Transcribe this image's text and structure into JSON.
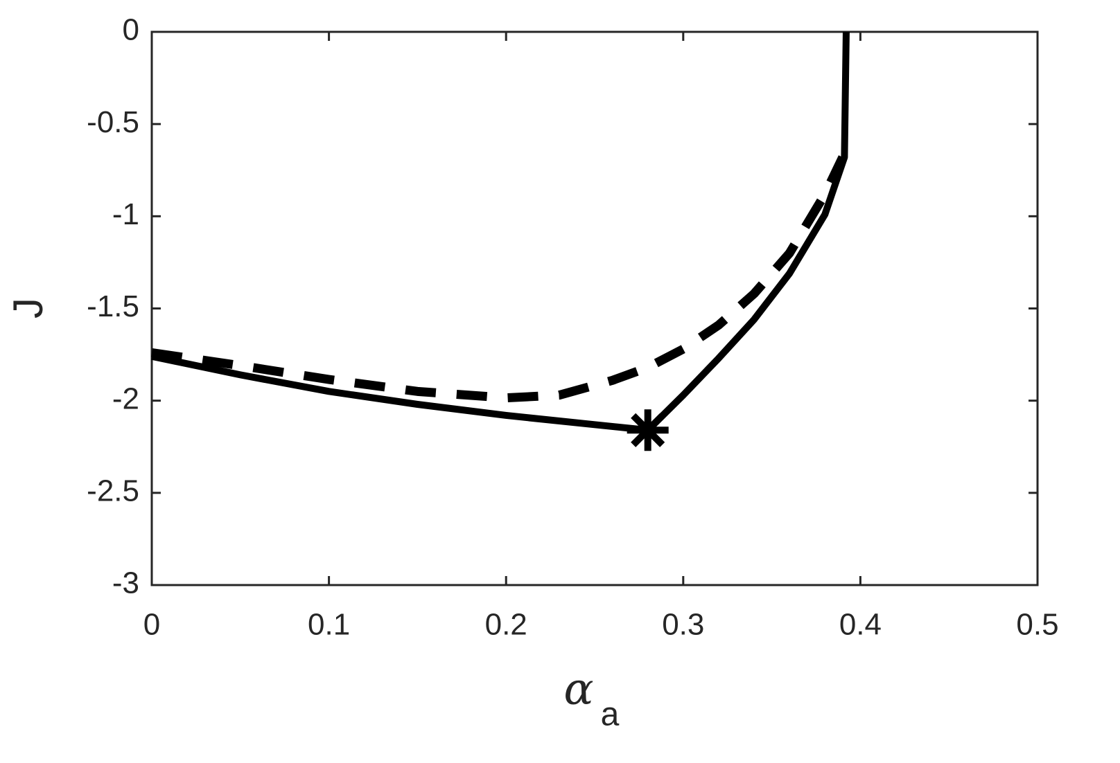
{
  "chart_data": {
    "type": "line",
    "xlabel": "α",
    "xlabel_subscript": "a",
    "ylabel": "J",
    "xlim": [
      0,
      0.5
    ],
    "ylim": [
      -3,
      0
    ],
    "xticks": [
      0,
      0.1,
      0.2,
      0.3,
      0.4,
      0.5
    ],
    "yticks": [
      -3,
      -2.5,
      -2,
      -1.5,
      -1,
      -0.5,
      0
    ],
    "grid": false,
    "series": [
      {
        "color": "#000000",
        "style": "solid",
        "x": [
          0,
          0.05,
          0.1,
          0.15,
          0.2,
          0.25,
          0.28,
          0.3,
          0.32,
          0.34,
          0.36,
          0.38,
          0.391,
          0.392
        ],
        "values": [
          -1.76,
          -1.86,
          -1.95,
          -2.02,
          -2.08,
          -2.13,
          -2.16,
          -1.97,
          -1.77,
          -1.56,
          -1.31,
          -0.99,
          -0.68,
          0
        ]
      },
      {
        "color": "#000000",
        "style": "dashed",
        "x": [
          0,
          0.05,
          0.1,
          0.15,
          0.2,
          0.23,
          0.26,
          0.28,
          0.3,
          0.32,
          0.34,
          0.36,
          0.38,
          0.39
        ],
        "values": [
          -1.74,
          -1.81,
          -1.885,
          -1.95,
          -1.985,
          -1.97,
          -1.89,
          -1.82,
          -1.72,
          -1.59,
          -1.42,
          -1.2,
          -0.88,
          -0.68
        ]
      }
    ],
    "marker": {
      "x": 0.28,
      "y": -2.16,
      "symbol": "asterisk",
      "color": "#000000"
    }
  }
}
